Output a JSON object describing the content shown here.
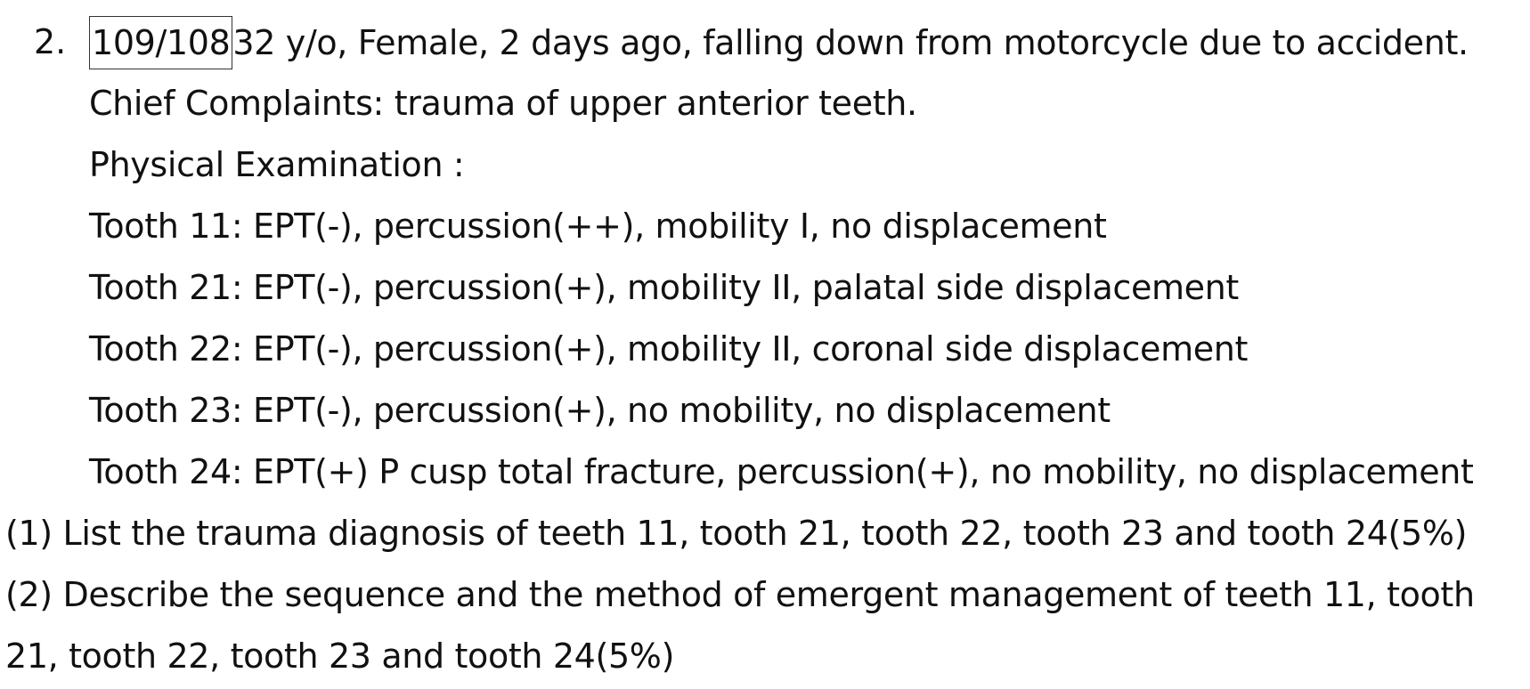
{
  "question": {
    "number": "2.",
    "case_id": "109/108",
    "case_intro": "32 y/o, Female, 2 days ago, falling down from motorcycle due to accident.",
    "chief_complaints": "Chief Complaints: trauma of upper anterior teeth.",
    "physical_exam_heading": "Physical Examination :",
    "findings": [
      "Tooth 11: EPT(-), percussion(++), mobility I, no displacement",
      "Tooth 21: EPT(-), percussion(+), mobility II, palatal side displacement",
      "Tooth 22: EPT(-), percussion(+), mobility II, coronal side displacement",
      "Tooth 23: EPT(-), percussion(+), no mobility, no displacement",
      "Tooth 24: EPT(+) P cusp total fracture, percussion(+), no mobility, no displacement"
    ],
    "sub_questions": {
      "q1": "(1) List the trauma diagnosis of teeth 11, tooth 21, tooth 22, tooth 23 and tooth 24(5%)",
      "q2_line1": "(2) Describe the sequence and the method of emergent management of teeth 11, tooth",
      "q2_line2": "21, tooth 22, tooth 23 and tooth 24(5%)"
    }
  }
}
